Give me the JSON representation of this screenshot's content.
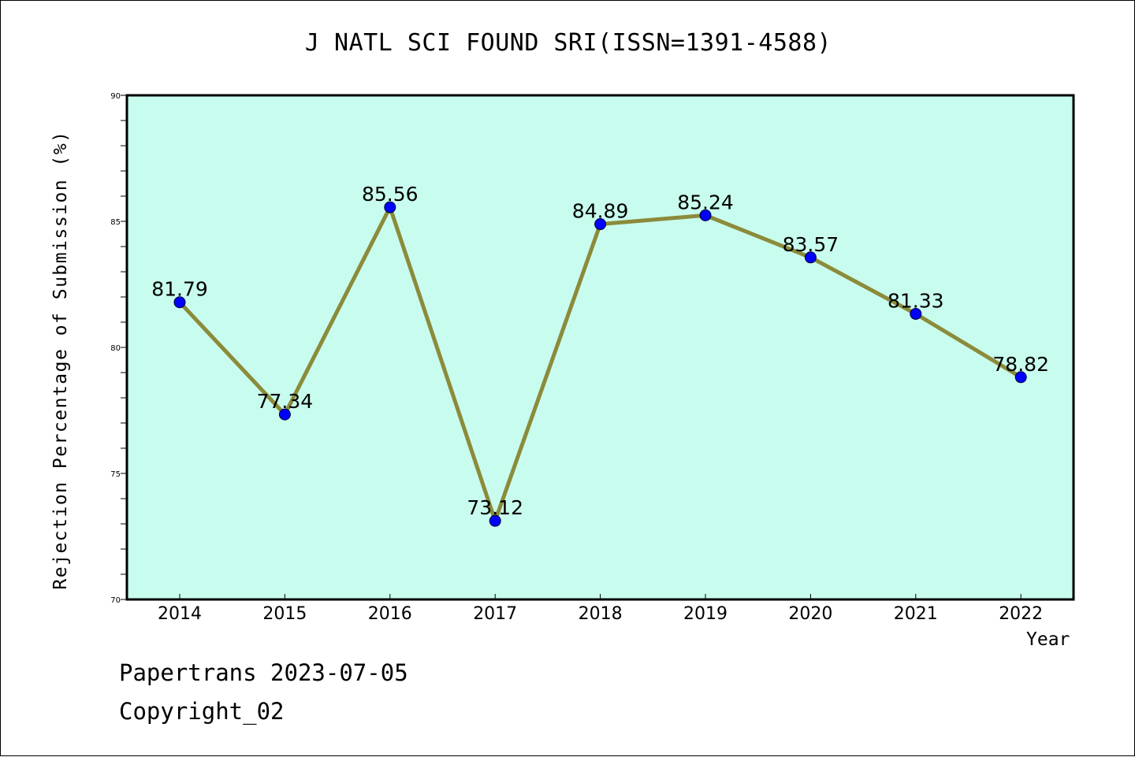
{
  "chart_data": {
    "type": "line",
    "title": "J NATL SCI FOUND SRI(ISSN=1391-4588)",
    "xlabel": "Year",
    "ylabel": "Rejection Percentage of Submission (%)",
    "categories": [
      "2014",
      "2015",
      "2016",
      "2017",
      "2018",
      "2019",
      "2020",
      "2021",
      "2022"
    ],
    "values": [
      81.79,
      77.34,
      85.56,
      73.12,
      84.89,
      85.24,
      83.57,
      81.33,
      78.82
    ],
    "data_labels": [
      "81.79",
      "77.34",
      "85.56",
      "73.12",
      "84.89",
      "85.24",
      "83.57",
      "81.33",
      "78.82"
    ],
    "ylim": [
      70,
      90
    ],
    "yticks": [
      70,
      75,
      80,
      85,
      90
    ],
    "grid": false,
    "colors": {
      "plot_background": "#c8fcee",
      "line": "#8b8b3a",
      "marker": "#0000ff",
      "axes": "#000000"
    }
  },
  "footer": {
    "line1": "Papertrans 2023-07-05",
    "line2": "Copyright_02"
  }
}
